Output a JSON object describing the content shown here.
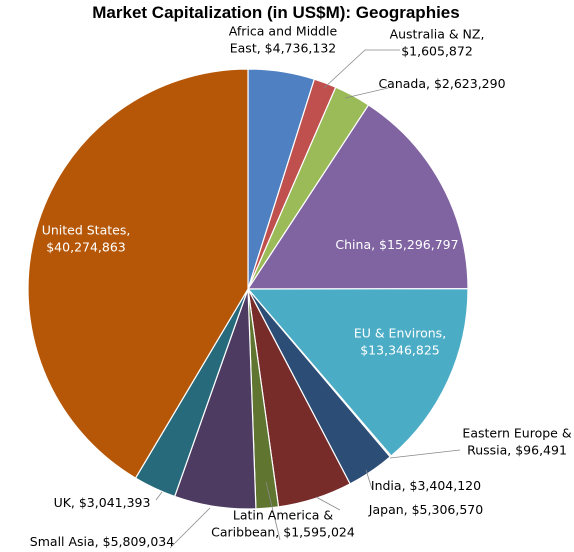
{
  "chart_data": {
    "type": "pie",
    "title": "Market Capitalization (in US$M): Geographies",
    "start": "12 o'clock",
    "direction": "clockwise",
    "slices": [
      {
        "name": "Africa and Middle East",
        "value": 4736132,
        "label_lines": [
          "Africa and Middle",
          "East, $4,736,132"
        ],
        "color": "#4e80c2"
      },
      {
        "name": "Australia & NZ",
        "value": 1605872,
        "label_lines": [
          "Australia & NZ,",
          "$1,605,872"
        ],
        "color": "#c0504d"
      },
      {
        "name": "Canada",
        "value": 2623290,
        "label_lines": [
          "Canada, $2,623,290"
        ],
        "color": "#9bbb59"
      },
      {
        "name": "China",
        "value": 15296797,
        "label_lines": [
          "China, $15,296,797"
        ],
        "color": "#8064a2"
      },
      {
        "name": "EU & Environs",
        "value": 13346825,
        "label_lines": [
          "EU & Environs,",
          "$13,346,825"
        ],
        "color": "#4bacc6"
      },
      {
        "name": "Eastern Europe & Russia",
        "value": 96491,
        "label_lines": [
          "Eastern Europe &",
          "Russia, $96,491"
        ],
        "color": "#f79646"
      },
      {
        "name": "India",
        "value": 3404120,
        "label_lines": [
          "India, $3,404,120"
        ],
        "color": "#2c4d75"
      },
      {
        "name": "Japan",
        "value": 5306570,
        "label_lines": [
          "Japan, $5,306,570"
        ],
        "color": "#772c2a"
      },
      {
        "name": "Latin America & Caribbean",
        "value": 1595024,
        "label_lines": [
          "Latin America &",
          "Caribbean, $1,595,024"
        ],
        "color": "#5f7530"
      },
      {
        "name": "Small Asia",
        "value": 5809034,
        "label_lines": [
          "Small Asia, $5,809,034"
        ],
        "color": "#4d3b62"
      },
      {
        "name": "UK",
        "value": 3041393,
        "label_lines": [
          "UK, $3,041,393"
        ],
        "color": "#276a7c"
      },
      {
        "name": "United States",
        "value": 40274863,
        "label_lines": [
          "United States,",
          "$40,274,863"
        ],
        "color": "#b65708"
      }
    ]
  }
}
